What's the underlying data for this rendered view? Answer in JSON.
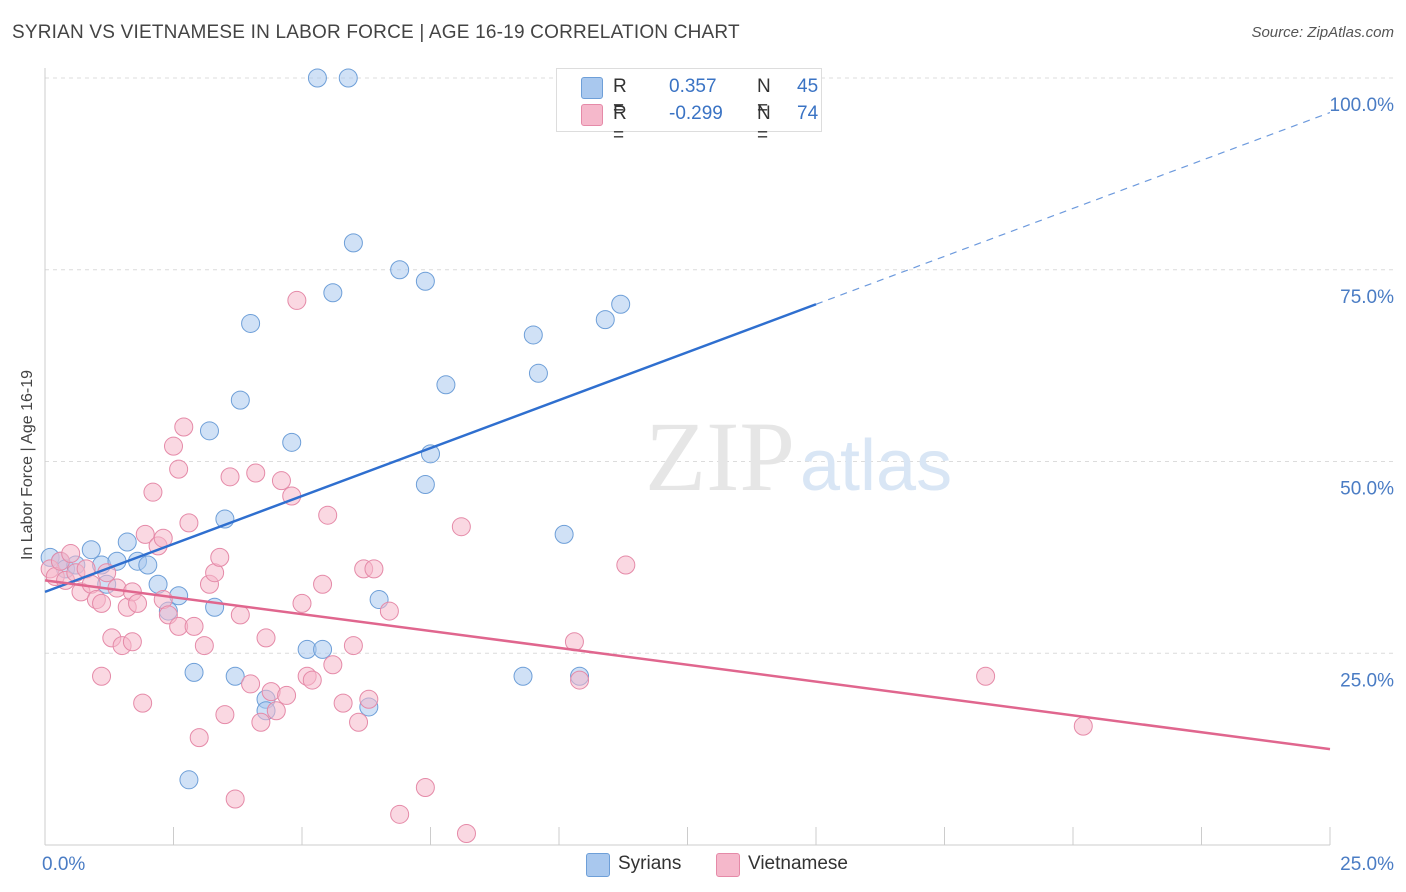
{
  "header": {
    "title": "SYRIAN VS VIETNAMESE IN LABOR FORCE | AGE 16-19 CORRELATION CHART",
    "source": "Source: ZipAtlas.com"
  },
  "watermark": {
    "zip": "ZIP",
    "atlas": "atlas"
  },
  "legend": {
    "rows": [
      {
        "r_label": "R =",
        "r_value": "0.357",
        "n_label": "N =",
        "n_value": "45",
        "color": "#a9c8ee"
      },
      {
        "r_label": "R =",
        "r_value": "-0.299",
        "n_label": "N =",
        "n_value": "74",
        "color": "#f5b8cb"
      }
    ]
  },
  "bottom_legend": [
    {
      "label": "Syrians",
      "color": "#a9c8ee"
    },
    {
      "label": "Vietnamese",
      "color": "#f5b8cb"
    }
  ],
  "chart_data": {
    "type": "scatter",
    "title": "SYRIAN VS VIETNAMESE IN LABOR FORCE | AGE 16-19 CORRELATION CHART",
    "xlabel": "",
    "ylabel": "In Labor Force | Age 16-19",
    "xlim": [
      0,
      25
    ],
    "ylim": [
      0,
      100
    ],
    "x_tick_labels": [
      "0.0%",
      "25.0%"
    ],
    "y_ticks": [
      25,
      50,
      75,
      100
    ],
    "y_tick_labels": [
      "25.0%",
      "50.0%",
      "75.0%",
      "100.0%"
    ],
    "grid": "horizontal dashed",
    "legend_position": "top-center",
    "series": [
      {
        "name": "Syrians",
        "color": "#a9c8ee",
        "edge_color": "#6e9fd8",
        "trend_color": "#2f6fcf",
        "trend": {
          "x_start": 0,
          "y_start": 33,
          "x_solid_end": 15,
          "y_solid_end": 70.5,
          "x_dash_end": 25,
          "y_dash_end": 95.5
        },
        "points": [
          [
            0.1,
            37.5
          ],
          [
            0.3,
            37
          ],
          [
            0.4,
            36
          ],
          [
            0.6,
            36.5
          ],
          [
            0.9,
            38.5
          ],
          [
            1.1,
            36.5
          ],
          [
            1.2,
            34
          ],
          [
            1.4,
            37
          ],
          [
            1.6,
            39.5
          ],
          [
            1.8,
            37
          ],
          [
            2.0,
            36.5
          ],
          [
            2.2,
            34
          ],
          [
            2.4,
            30.5
          ],
          [
            2.6,
            32.5
          ],
          [
            2.9,
            22.5
          ],
          [
            2.8,
            8.5
          ],
          [
            3.2,
            54
          ],
          [
            3.3,
            31
          ],
          [
            3.5,
            42.5
          ],
          [
            3.7,
            22
          ],
          [
            3.8,
            58
          ],
          [
            4.0,
            68
          ],
          [
            4.3,
            19
          ],
          [
            4.3,
            17.5
          ],
          [
            4.8,
            52.5
          ],
          [
            5.1,
            25.5
          ],
          [
            5.3,
            100
          ],
          [
            5.4,
            25.5
          ],
          [
            5.6,
            72
          ],
          [
            5.9,
            100
          ],
          [
            6.0,
            78.5
          ],
          [
            6.3,
            18
          ],
          [
            6.5,
            32
          ],
          [
            6.9,
            75
          ],
          [
            7.4,
            73.5
          ],
          [
            7.5,
            51
          ],
          [
            7.4,
            47
          ],
          [
            7.8,
            60
          ],
          [
            9.3,
            22
          ],
          [
            9.5,
            66.5
          ],
          [
            9.6,
            61.5
          ],
          [
            10.1,
            40.5
          ],
          [
            10.4,
            22
          ],
          [
            10.9,
            68.5
          ],
          [
            11.2,
            70.5
          ]
        ]
      },
      {
        "name": "Vietnamese",
        "color": "#f5b8cb",
        "edge_color": "#e58aa8",
        "trend_color": "#e0668e",
        "trend": {
          "x_start": 0,
          "y_start": 34.5,
          "x_end": 25,
          "y_end": 12.5
        },
        "points": [
          [
            0.1,
            36
          ],
          [
            0.2,
            35
          ],
          [
            0.3,
            37
          ],
          [
            0.4,
            34.5
          ],
          [
            0.5,
            38
          ],
          [
            0.6,
            35.5
          ],
          [
            0.7,
            33
          ],
          [
            0.8,
            36
          ],
          [
            0.9,
            34
          ],
          [
            1.0,
            32
          ],
          [
            1.1,
            22
          ],
          [
            1.1,
            31.5
          ],
          [
            1.2,
            35.5
          ],
          [
            1.3,
            27
          ],
          [
            1.4,
            33.5
          ],
          [
            1.5,
            26
          ],
          [
            1.6,
            31
          ],
          [
            1.7,
            33
          ],
          [
            1.7,
            26.5
          ],
          [
            1.8,
            31.5
          ],
          [
            1.9,
            18.5
          ],
          [
            1.95,
            40.5
          ],
          [
            2.1,
            46
          ],
          [
            2.2,
            39
          ],
          [
            2.3,
            32
          ],
          [
            2.3,
            40
          ],
          [
            2.4,
            30
          ],
          [
            2.5,
            52
          ],
          [
            2.6,
            49
          ],
          [
            2.6,
            28.5
          ],
          [
            2.7,
            54.5
          ],
          [
            2.8,
            42
          ],
          [
            2.9,
            28.5
          ],
          [
            3.0,
            14
          ],
          [
            3.1,
            26
          ],
          [
            3.2,
            34
          ],
          [
            3.3,
            35.5
          ],
          [
            3.4,
            37.5
          ],
          [
            3.5,
            17
          ],
          [
            3.6,
            48
          ],
          [
            3.7,
            6
          ],
          [
            3.8,
            30
          ],
          [
            4.0,
            21
          ],
          [
            4.1,
            48.5
          ],
          [
            4.2,
            16
          ],
          [
            4.3,
            27
          ],
          [
            4.4,
            20
          ],
          [
            4.5,
            17.5
          ],
          [
            4.6,
            47.5
          ],
          [
            4.7,
            19.5
          ],
          [
            4.8,
            45.5
          ],
          [
            4.9,
            71
          ],
          [
            5.0,
            31.5
          ],
          [
            5.1,
            22
          ],
          [
            5.2,
            21.5
          ],
          [
            5.4,
            34
          ],
          [
            5.5,
            43
          ],
          [
            5.6,
            23.5
          ],
          [
            5.8,
            18.5
          ],
          [
            6.0,
            26
          ],
          [
            6.1,
            16
          ],
          [
            6.2,
            36
          ],
          [
            6.3,
            19
          ],
          [
            6.4,
            36
          ],
          [
            6.7,
            30.5
          ],
          [
            6.9,
            4
          ],
          [
            7.4,
            7.5
          ],
          [
            8.1,
            41.5
          ],
          [
            8.2,
            1.5
          ],
          [
            10.3,
            26.5
          ],
          [
            10.4,
            21.5
          ],
          [
            11.3,
            36.5
          ],
          [
            18.3,
            22
          ],
          [
            20.2,
            15.5
          ]
        ]
      }
    ]
  }
}
